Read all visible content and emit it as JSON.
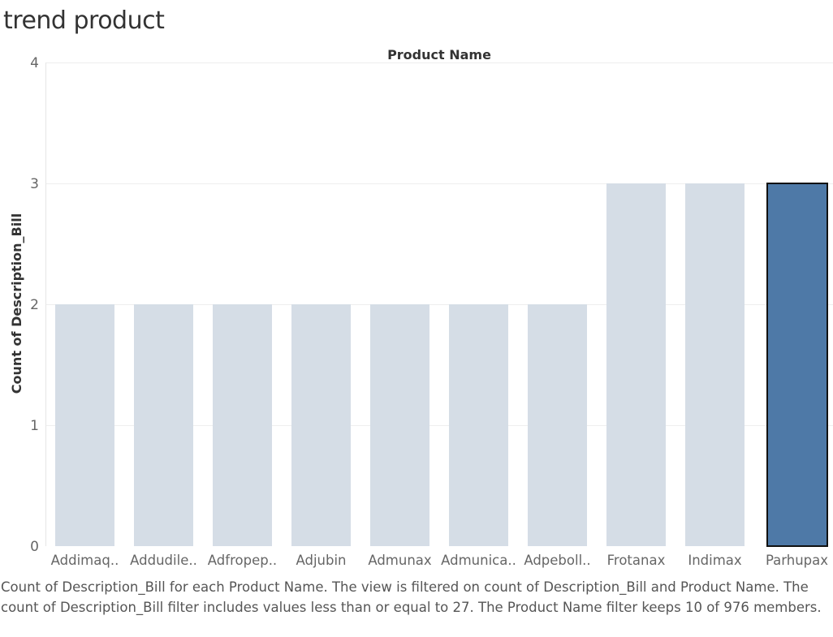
{
  "sheet": {
    "title": "trend product",
    "caption": "Count of Description_Bill for each Product Name. The view is filtered on count of Description_Bill and Product Name. The count of Description_Bill filter includes values less than or equal to 27. The Product Name filter keeps 10 of 976 members."
  },
  "colors": {
    "bar_default": "#d5dde6",
    "bar_selected": "#4e79a7",
    "selected_outline": "#111111",
    "gridline": "#eeeeee",
    "axis_text": "#666666"
  },
  "chart_data": {
    "type": "bar",
    "title": "trend product",
    "xlabel": "Product Name",
    "ylabel": "Count of Description_Bill",
    "categories": [
      "Addimaq..",
      "Addudile..",
      "Adfropep..",
      "Adjubin",
      "Admunax",
      "Admunica..",
      "Adpeboll..",
      "Frotanax",
      "Indimax",
      "Parhupax"
    ],
    "values": [
      2,
      2,
      2,
      2,
      2,
      2,
      2,
      3,
      3,
      3
    ],
    "selected_index": 9,
    "ylim": [
      0,
      4
    ],
    "yticks": [
      0,
      1,
      2,
      3,
      4
    ],
    "grid": true,
    "legend": "none"
  }
}
